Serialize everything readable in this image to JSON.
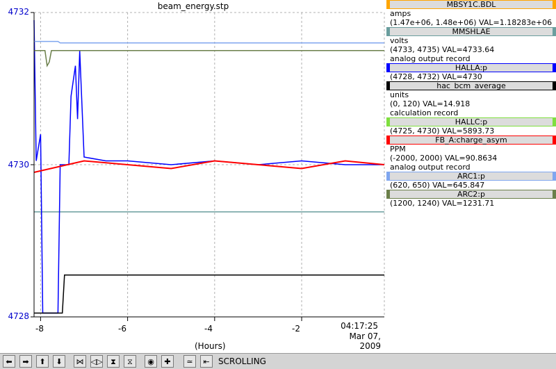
{
  "chart": {
    "title": "beam_energy.stp",
    "x_unit": "(Hours)",
    "time": "04:17:25",
    "date": "Mar 07, 2009",
    "y_ticks": [
      "4732",
      "4730",
      "4728"
    ],
    "x_ticks": [
      "-8",
      "-6",
      "-4",
      "-2"
    ]
  },
  "chart_data": {
    "type": "line",
    "title": "beam_energy.stp",
    "xlabel": "(Hours)",
    "ylabel": "",
    "xlim": [
      -8.15,
      -0.1
    ],
    "ylim": [
      4728,
      4732
    ],
    "grid": true,
    "x_ticks": [
      -8,
      -6,
      -4,
      -2
    ],
    "y_ticks": [
      4728,
      4730,
      4732
    ],
    "legend_position": "right",
    "series": [
      {
        "name": "MBSY1C.BDL",
        "color": "#ffa500",
        "x": [],
        "y": []
      },
      {
        "name": "MMSHLAE",
        "color": "#6a9e9e",
        "x": [
          -8.15,
          -0.1
        ],
        "y": [
          4729.38,
          4729.38
        ]
      },
      {
        "name": "HALLA:p",
        "color": "#0000ff",
        "x": [
          -8.15,
          -8.1,
          -8.0,
          -7.95,
          -7.9,
          -7.6,
          -7.55,
          -7.35,
          -7.3,
          -7.2,
          -7.15,
          -7.1,
          -7.0,
          -6.5,
          -6.0,
          -5.0,
          -4.0,
          -3.0,
          -2.0,
          -1.0,
          -0.1
        ],
        "y": [
          4731.9,
          4730.05,
          4730.4,
          4728.05,
          4728.05,
          4728.05,
          4730.0,
          4730.0,
          4730.9,
          4731.3,
          4730.6,
          4731.5,
          4730.1,
          4730.05,
          4730.05,
          4730.0,
          4730.05,
          4730.0,
          4730.05,
          4730.0,
          4730.0
        ]
      },
      {
        "name": "hac_bcm_average",
        "color": "#000000",
        "x": [
          -8.15,
          -7.5,
          -7.45,
          -7.0,
          -6.0,
          -5.0,
          -4.0,
          -3.0,
          -2.0,
          -1.0,
          -0.1
        ],
        "y": [
          4728.05,
          4728.05,
          4728.55,
          4728.55,
          4728.55,
          4728.55,
          4728.55,
          4728.55,
          4728.55,
          4728.55,
          4728.55
        ]
      },
      {
        "name": "HALLC:p",
        "color": "#7fdf3f",
        "x": [],
        "y": []
      },
      {
        "name": "FB_A:charge_asym",
        "color": "#ff0000",
        "x": [
          -8.15,
          -7.0,
          -6.0,
          -5.0,
          -4.0,
          -3.0,
          -2.0,
          -1.0,
          -0.1
        ],
        "y": [
          4729.9,
          4730.05,
          4730.0,
          4729.95,
          4730.05,
          4730.0,
          4729.95,
          4730.05,
          4730.0
        ]
      },
      {
        "name": "ARC1:p",
        "color": "#7fa6ef",
        "x": [
          -8.15,
          -7.6,
          -7.55,
          -0.1
        ],
        "y": [
          4731.62,
          4731.62,
          4731.6,
          4731.6
        ]
      },
      {
        "name": "ARC2:p",
        "color": "#6b7f4a",
        "x": [
          -8.15,
          -7.9,
          -7.85,
          -7.8,
          -7.75,
          -0.1
        ],
        "y": [
          4731.5,
          4731.5,
          4731.3,
          4731.35,
          4731.5,
          4731.5
        ]
      }
    ]
  },
  "legend": [
    {
      "name": "MBSY1C.BDL",
      "color": "#ffa500",
      "lines": [
        "amps",
        "(1.47e+06, 1.48e+06)  VAL=1.18283e+06"
      ]
    },
    {
      "name": "MMSHLAE",
      "color": "#6a9e9e",
      "lines": [
        "volts",
        "(4733, 4735)  VAL=4733.64",
        "analog output record"
      ]
    },
    {
      "name": "HALLA:p",
      "color": "#0000ff",
      "lines": [
        "(4728, 4732) VAL=4730"
      ]
    },
    {
      "name": "hac_bcm_average",
      "color": "#000000",
      "lines": [
        "units",
        "(0, 120) VAL=14.918",
        "calculation record"
      ]
    },
    {
      "name": "HALLC:p",
      "color": "#7fdf3f",
      "lines": [
        "(4725, 4730) VAL=5893.73"
      ]
    },
    {
      "name": "FB_A:charge_asym",
      "color": "#ff0000",
      "lines": [
        "PPM",
        "(-2000, 2000) VAL=90.8634",
        "analog output record"
      ]
    },
    {
      "name": "ARC1:p",
      "color": "#7fa6ef",
      "lines": [
        "(620, 650) VAL=645.847"
      ]
    },
    {
      "name": "ARC2:p",
      "color": "#6b7f4a",
      "lines": [
        "(1200, 1240) VAL=1231.71"
      ]
    }
  ],
  "toolbar": {
    "status": "SCROLLING",
    "buttons": [
      {
        "name": "pan-left-button",
        "icon": "arrow-left-icon",
        "glyph": "⬅"
      },
      {
        "name": "pan-right-button",
        "icon": "arrow-right-icon",
        "glyph": "➡"
      },
      {
        "name": "pan-up-button",
        "icon": "arrow-up-icon",
        "glyph": "⬆"
      },
      {
        "name": "pan-down-button",
        "icon": "arrow-down-icon",
        "glyph": "⬇"
      },
      {
        "name": "zoom-in-x-button",
        "icon": "zoom-in-x-icon",
        "glyph": "⋈"
      },
      {
        "name": "zoom-out-x-button",
        "icon": "zoom-out-x-icon",
        "glyph": "◁▷"
      },
      {
        "name": "zoom-in-y-button",
        "icon": "zoom-in-y-icon",
        "glyph": "⧗"
      },
      {
        "name": "zoom-out-y-button",
        "icon": "zoom-out-y-icon",
        "glyph": "⧖"
      },
      {
        "name": "reset-button",
        "icon": "reset-icon",
        "glyph": "◉"
      },
      {
        "name": "add-button",
        "icon": "plus-icon",
        "glyph": "✚"
      },
      {
        "name": "autoscale-button",
        "icon": "autoscale-icon",
        "glyph": "≃"
      },
      {
        "name": "scroll-mode-button",
        "icon": "scroll-icon",
        "glyph": "⇤"
      }
    ]
  }
}
